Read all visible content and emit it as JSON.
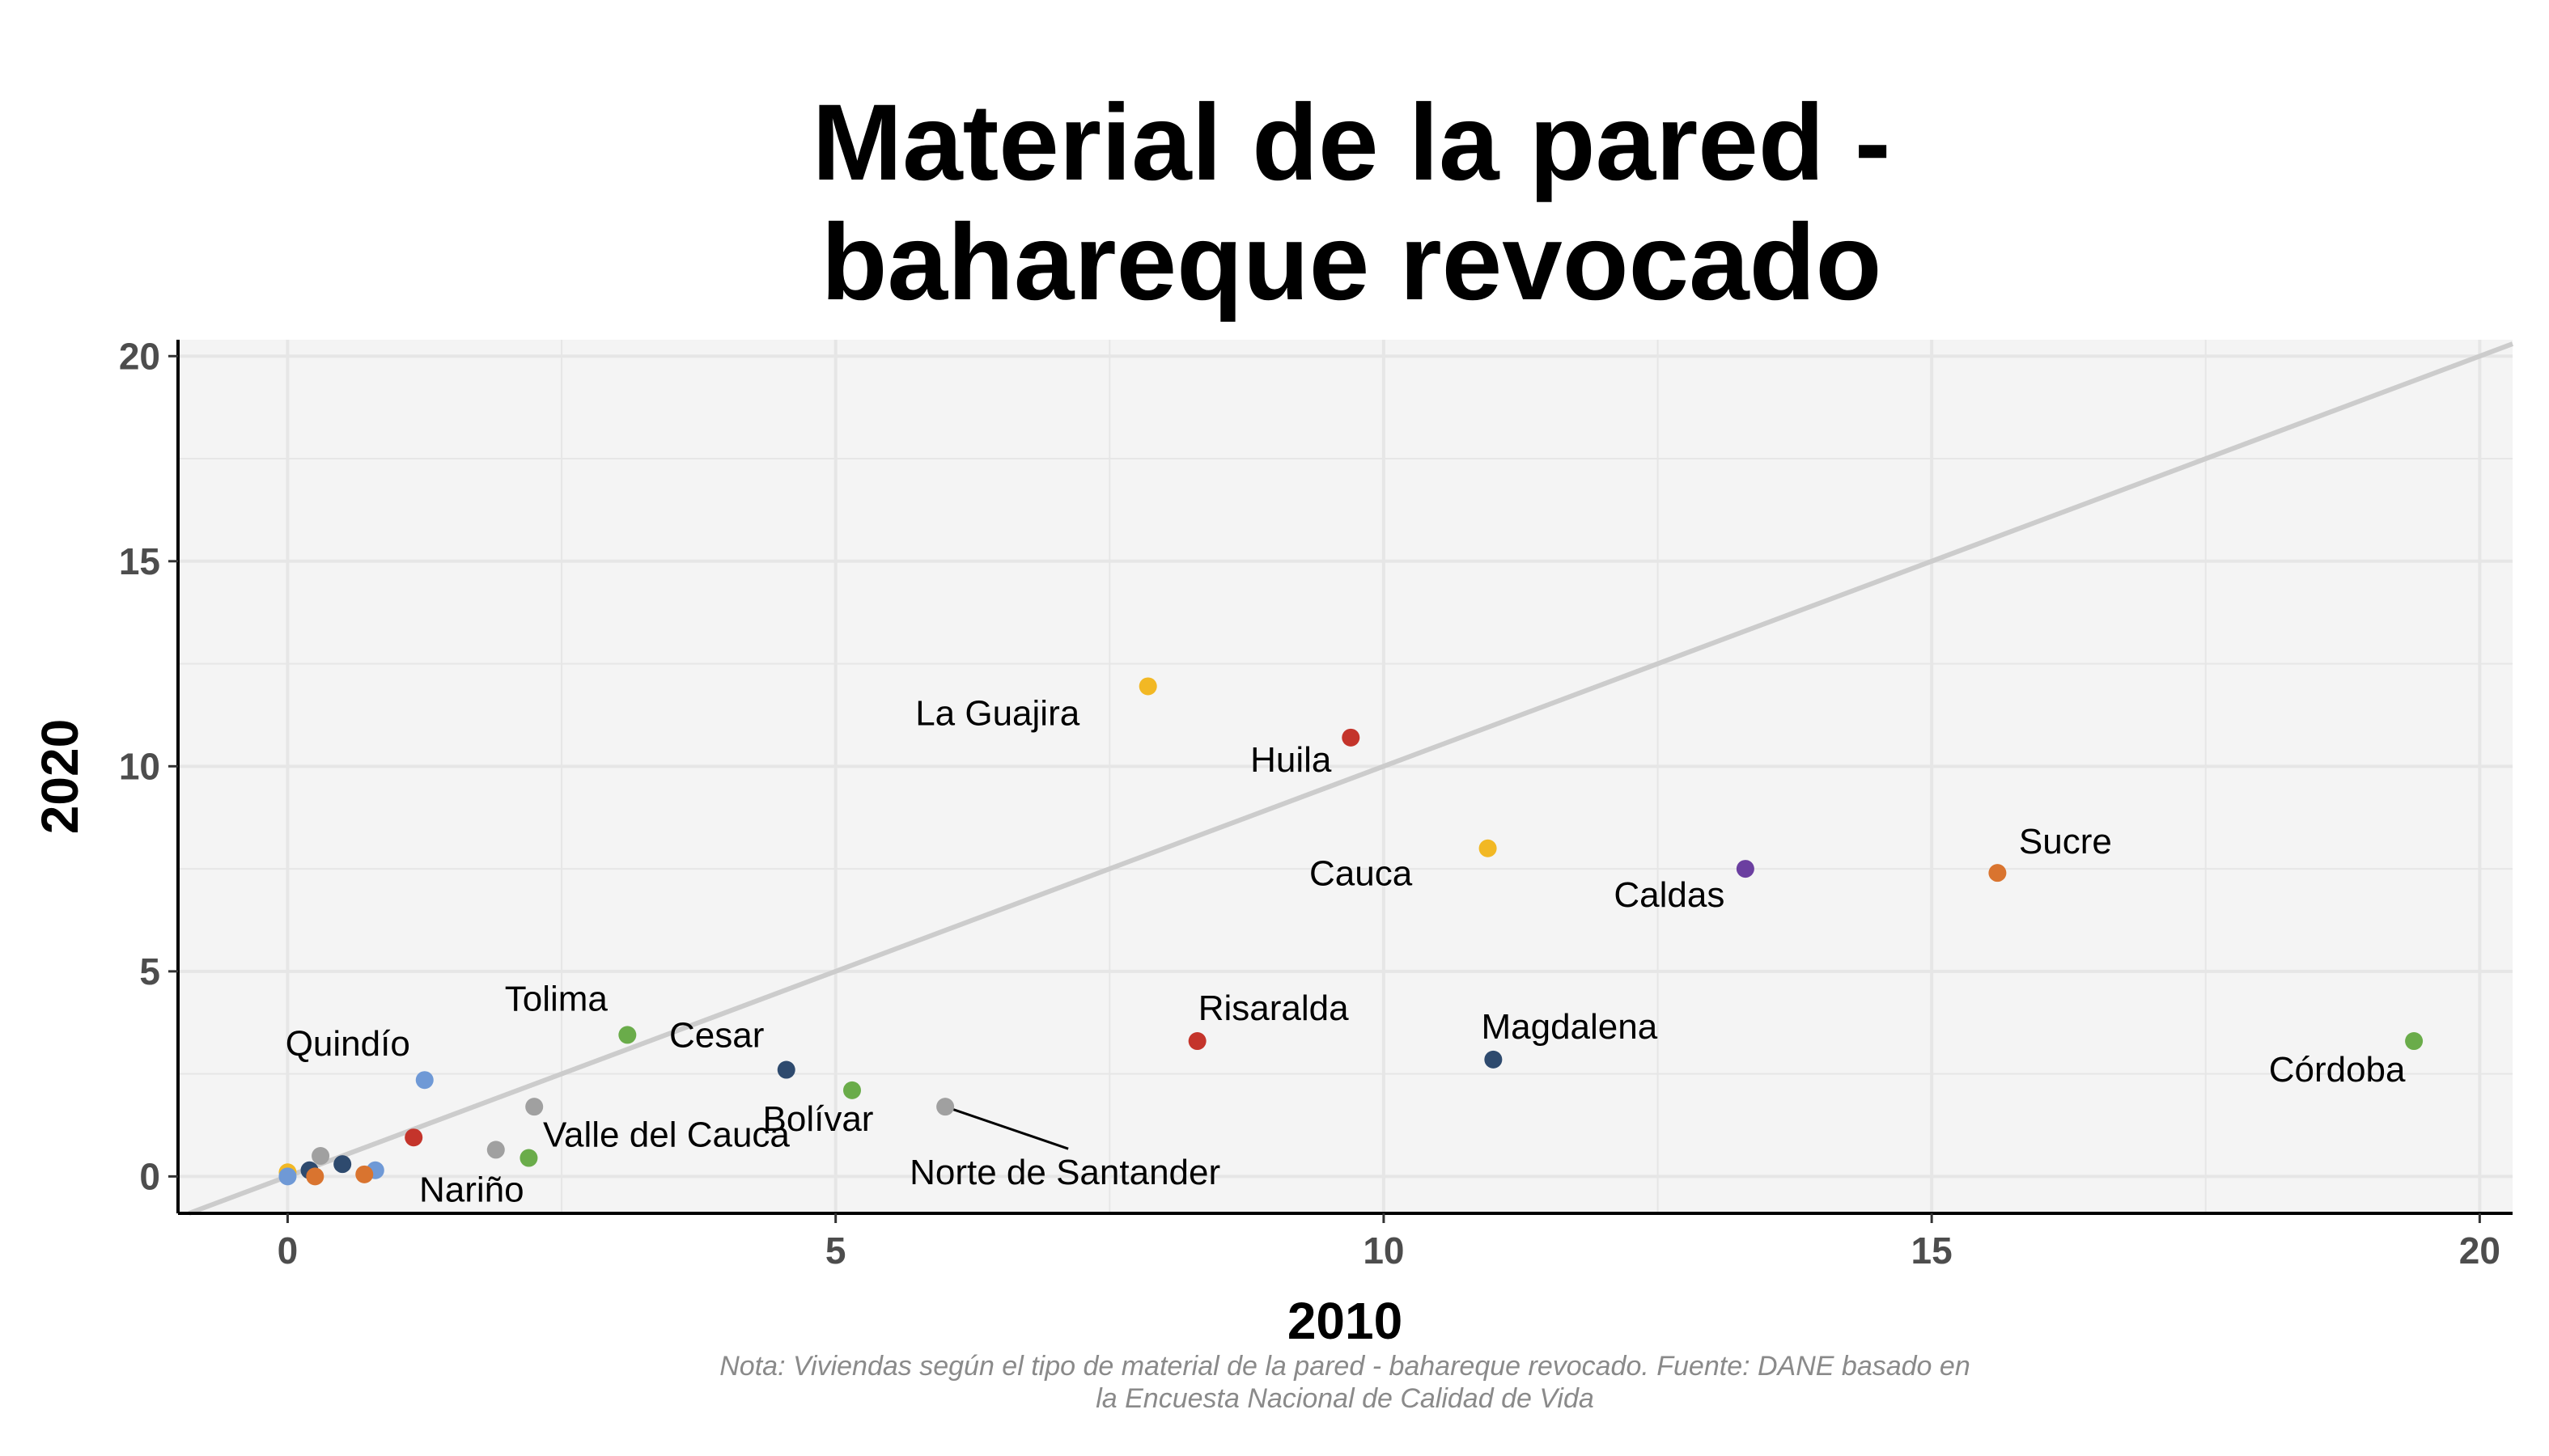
{
  "chart_data": {
    "type": "scatter",
    "title_lines": [
      "Material de la pared -",
      "bahareque revocado"
    ],
    "xlabel": "2010",
    "ylabel": "2020",
    "caption_lines": [
      "Nota: Viviendas según el tipo de material de la pared - bahareque revocado. Fuente: DANE basado en",
      "la Encuesta Nacional de Calidad de Vida"
    ],
    "xlim": [
      -1,
      20.3
    ],
    "ylim": [
      -0.9,
      20.4
    ],
    "x_ticks": [
      0,
      5,
      10,
      15,
      20
    ],
    "y_ticks": [
      0,
      5,
      10,
      15,
      20
    ],
    "grid": true,
    "reference_line": "y = x",
    "points": [
      {
        "x": 7.85,
        "y": 11.95,
        "label": "La Guajira",
        "color": "#f2b824"
      },
      {
        "x": 9.7,
        "y": 10.7,
        "label": "Huila",
        "color": "#c4342b"
      },
      {
        "x": 10.95,
        "y": 8.0,
        "label": "Cauca",
        "color": "#f2b824"
      },
      {
        "x": 13.3,
        "y": 7.5,
        "label": "Caldas",
        "color": "#6b3fa0"
      },
      {
        "x": 15.6,
        "y": 7.4,
        "label": "Sucre",
        "color": "#d9742f"
      },
      {
        "x": 19.4,
        "y": 3.3,
        "label": "Córdoba",
        "color": "#6aac4a"
      },
      {
        "x": 8.3,
        "y": 3.3,
        "label": "Risaralda",
        "color": "#c4342b"
      },
      {
        "x": 11.0,
        "y": 2.85,
        "label": "Magdalena",
        "color": "#2e4a6e"
      },
      {
        "x": 3.1,
        "y": 3.45,
        "label": "Tolima",
        "color": "#6aac4a"
      },
      {
        "x": 4.55,
        "y": 2.6,
        "label": "Cesar",
        "color": "#2e4a6e"
      },
      {
        "x": 5.15,
        "y": 2.1,
        "label": "Bolívar",
        "color": "#6aac4a"
      },
      {
        "x": 6.0,
        "y": 1.7,
        "label": "Norte de Santander",
        "color": "#a0a0a0"
      },
      {
        "x": 1.25,
        "y": 2.35,
        "label": "Quindío",
        "color": "#6f99d6"
      },
      {
        "x": 2.2,
        "y": 0.45,
        "label": "Valle del Cauca",
        "color": "#6aac4a"
      },
      {
        "x": 1.9,
        "y": 0.65,
        "label": "Nariño",
        "color": "#a0a0a0"
      },
      {
        "x": 2.25,
        "y": 1.7,
        "label": "",
        "color": "#a0a0a0"
      },
      {
        "x": 1.15,
        "y": 0.95,
        "label": "",
        "color": "#c4342b"
      },
      {
        "x": 0.5,
        "y": 0.3,
        "label": "",
        "color": "#2e4a6e"
      },
      {
        "x": 0.3,
        "y": 0.5,
        "label": "",
        "color": "#a0a0a0"
      },
      {
        "x": 0.2,
        "y": 0.15,
        "label": "",
        "color": "#2e4a6e"
      },
      {
        "x": 0.8,
        "y": 0.15,
        "label": "",
        "color": "#6f99d6"
      },
      {
        "x": 0.7,
        "y": 0.05,
        "label": "",
        "color": "#d9742f"
      },
      {
        "x": 0.0,
        "y": 0.1,
        "label": "",
        "color": "#f2b824"
      },
      {
        "x": 0.0,
        "y": 0.0,
        "label": "",
        "color": "#6f99d6"
      },
      {
        "x": 0.25,
        "y": 0.0,
        "label": "",
        "color": "#d9742f"
      }
    ]
  }
}
